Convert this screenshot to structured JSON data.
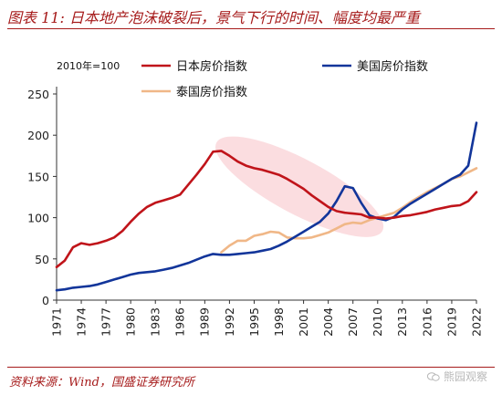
{
  "title": "图表 11: 日本地产泡沫破裂后，景气下行的时间、幅度均最严重",
  "source": "资料来源：Wind，国盛证券研究所",
  "watermark": {
    "text": "熊园观察",
    "icon": "wechat-icon"
  },
  "chart_data": {
    "type": "line",
    "title": "",
    "xlabel": "",
    "ylabel": "",
    "note": "2010年=100",
    "xlim": [
      1971,
      2022
    ],
    "ylim": [
      0,
      250
    ],
    "yticks": [
      0,
      50,
      100,
      150,
      200,
      250
    ],
    "xticks": [
      1971,
      1974,
      1977,
      1980,
      1983,
      1986,
      1989,
      1992,
      1995,
      1998,
      2001,
      2004,
      2007,
      2010,
      2013,
      2016,
      2019,
      2022
    ],
    "grid": false,
    "annotation": "pink ellipse highlighting Japan's post-bubble decline (1991–2010)",
    "series": [
      {
        "name": "日本房价指数",
        "color": "#c0141a",
        "x": [
          1971,
          1972,
          1973,
          1974,
          1975,
          1976,
          1977,
          1978,
          1979,
          1980,
          1981,
          1982,
          1983,
          1984,
          1985,
          1986,
          1987,
          1988,
          1989,
          1990,
          1991,
          1992,
          1993,
          1994,
          1995,
          1996,
          1997,
          1998,
          1999,
          2000,
          2001,
          2002,
          2003,
          2004,
          2005,
          2006,
          2007,
          2008,
          2009,
          2010,
          2011,
          2012,
          2013,
          2014,
          2015,
          2016,
          2017,
          2018,
          2019,
          2020,
          2021,
          2022
        ],
        "values": [
          40,
          48,
          64,
          69,
          67,
          69,
          72,
          76,
          84,
          95,
          105,
          113,
          118,
          121,
          124,
          128,
          140,
          152,
          165,
          180,
          181,
          175,
          168,
          163,
          160,
          158,
          155,
          152,
          147,
          141,
          135,
          127,
          120,
          113,
          108,
          106,
          105,
          104,
          100,
          100,
          99,
          100,
          102,
          103,
          105,
          107,
          110,
          112,
          114,
          115,
          120,
          131
        ]
      },
      {
        "name": "美国房价指数",
        "color": "#12359a",
        "x": [
          1971,
          1972,
          1973,
          1974,
          1975,
          1976,
          1977,
          1978,
          1979,
          1980,
          1981,
          1982,
          1983,
          1984,
          1985,
          1986,
          1987,
          1988,
          1989,
          1990,
          1991,
          1992,
          1993,
          1994,
          1995,
          1996,
          1997,
          1998,
          1999,
          2000,
          2001,
          2002,
          2003,
          2004,
          2005,
          2006,
          2007,
          2008,
          2009,
          2010,
          2011,
          2012,
          2013,
          2014,
          2015,
          2016,
          2017,
          2018,
          2019,
          2020,
          2021,
          2022
        ],
        "values": [
          12,
          13,
          15,
          16,
          17,
          19,
          22,
          25,
          28,
          31,
          33,
          34,
          35,
          37,
          39,
          42,
          45,
          49,
          53,
          56,
          55,
          55,
          56,
          57,
          58,
          60,
          62,
          66,
          71,
          77,
          83,
          89,
          95,
          105,
          120,
          138,
          136,
          118,
          103,
          99,
          97,
          101,
          110,
          117,
          123,
          129,
          135,
          141,
          147,
          152,
          163,
          215
        ]
      },
      {
        "name": "泰国房价指数",
        "color": "#f0b787",
        "x": [
          1991,
          1992,
          1993,
          1994,
          1995,
          1996,
          1997,
          1998,
          1999,
          2000,
          2001,
          2002,
          2003,
          2004,
          2005,
          2006,
          2007,
          2008,
          2009,
          2010,
          2011,
          2012,
          2013,
          2014,
          2015,
          2016,
          2017,
          2018,
          2019,
          2020,
          2021,
          2022
        ],
        "values": [
          58,
          66,
          72,
          72,
          78,
          80,
          83,
          82,
          76,
          75,
          75,
          76,
          79,
          82,
          87,
          92,
          94,
          93,
          97,
          100,
          103,
          106,
          112,
          119,
          125,
          131,
          136,
          141,
          147,
          150,
          155,
          160
        ]
      }
    ]
  }
}
